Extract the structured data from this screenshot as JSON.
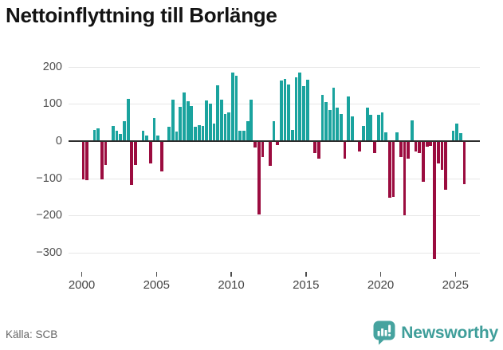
{
  "title": "Nettoinflyttning till Borlänge",
  "source": "Källa: SCB",
  "logo": {
    "text": "Newsworthy",
    "icon": "newsworthy-speech-bubble-chart-icon"
  },
  "colors": {
    "positive": "#1aa39e",
    "negative": "#9b0c3f",
    "zero_line": "#2d2d2d",
    "grid": "#e7e7e7",
    "brand_teal": "#46a39f"
  },
  "chart_data": {
    "type": "bar",
    "title": "Nettoinflyttning till Borlänge",
    "frequency": "quarterly",
    "period_start": "2000 Q1",
    "period_end": "2025 Q3",
    "xlabel": "",
    "ylabel": "",
    "ylim": [
      -340,
      210
    ],
    "grid": true,
    "legend": "none",
    "yticks": [
      200,
      100,
      0,
      -100,
      -200,
      -300
    ],
    "ytick_labels": [
      "200",
      "100",
      "0",
      "−100",
      "−200",
      "−300"
    ],
    "xticks": [
      2000,
      2005,
      2010,
      2015,
      2020,
      2025
    ],
    "categories": [
      "2000Q1",
      "2000Q2",
      "2000Q3",
      "2000Q4",
      "2001Q1",
      "2001Q2",
      "2001Q3",
      "2001Q4",
      "2002Q1",
      "2002Q2",
      "2002Q3",
      "2002Q4",
      "2003Q1",
      "2003Q2",
      "2003Q3",
      "2003Q4",
      "2004Q1",
      "2004Q2",
      "2004Q3",
      "2004Q4",
      "2005Q1",
      "2005Q2",
      "2005Q3",
      "2005Q4",
      "2006Q1",
      "2006Q2",
      "2006Q3",
      "2006Q4",
      "2007Q1",
      "2007Q2",
      "2007Q3",
      "2007Q4",
      "2008Q1",
      "2008Q2",
      "2008Q3",
      "2008Q4",
      "2009Q1",
      "2009Q2",
      "2009Q3",
      "2009Q4",
      "2010Q1",
      "2010Q2",
      "2010Q3",
      "2010Q4",
      "2011Q1",
      "2011Q2",
      "2011Q3",
      "2011Q4",
      "2012Q1",
      "2012Q2",
      "2012Q3",
      "2012Q4",
      "2013Q1",
      "2013Q2",
      "2013Q3",
      "2013Q4",
      "2014Q1",
      "2014Q2",
      "2014Q3",
      "2014Q4",
      "2015Q1",
      "2015Q2",
      "2015Q3",
      "2015Q4",
      "2016Q1",
      "2016Q2",
      "2016Q3",
      "2016Q4",
      "2017Q1",
      "2017Q2",
      "2017Q3",
      "2017Q4",
      "2018Q1",
      "2018Q2",
      "2018Q3",
      "2018Q4",
      "2019Q1",
      "2019Q2",
      "2019Q3",
      "2019Q4",
      "2020Q1",
      "2020Q2",
      "2020Q3",
      "2020Q4",
      "2021Q1",
      "2021Q2",
      "2021Q3",
      "2021Q4",
      "2022Q1",
      "2022Q2",
      "2022Q3",
      "2022Q4",
      "2023Q1",
      "2023Q2",
      "2023Q3",
      "2023Q4",
      "2024Q1",
      "2024Q2",
      "2024Q3",
      "2024Q4",
      "2025Q1",
      "2025Q2",
      "2025Q3"
    ],
    "values": [
      -100,
      -103,
      0,
      29,
      35,
      -101,
      -62,
      0,
      40,
      27,
      20,
      54,
      113,
      -115,
      -62,
      0,
      28,
      14,
      -58,
      62,
      14,
      -79,
      0,
      38,
      112,
      25,
      92,
      131,
      106,
      94,
      39,
      42,
      40,
      110,
      101,
      48,
      150,
      112,
      73,
      78,
      185,
      175,
      27,
      27,
      53,
      112,
      -14,
      -195,
      -40,
      0,
      -64,
      53,
      -8,
      163,
      167,
      151,
      30,
      172,
      185,
      147,
      165,
      0,
      -30,
      -44,
      124,
      105,
      84,
      144,
      89,
      73,
      -45,
      119,
      67,
      0,
      -26,
      40,
      91,
      71,
      -30,
      71,
      77,
      23,
      -150,
      -148,
      23,
      -40,
      -196,
      -44,
      55,
      -25,
      -30,
      -108,
      -12,
      -10,
      -315,
      -57,
      -76,
      -129,
      0,
      27,
      48,
      21,
      -113
    ]
  }
}
